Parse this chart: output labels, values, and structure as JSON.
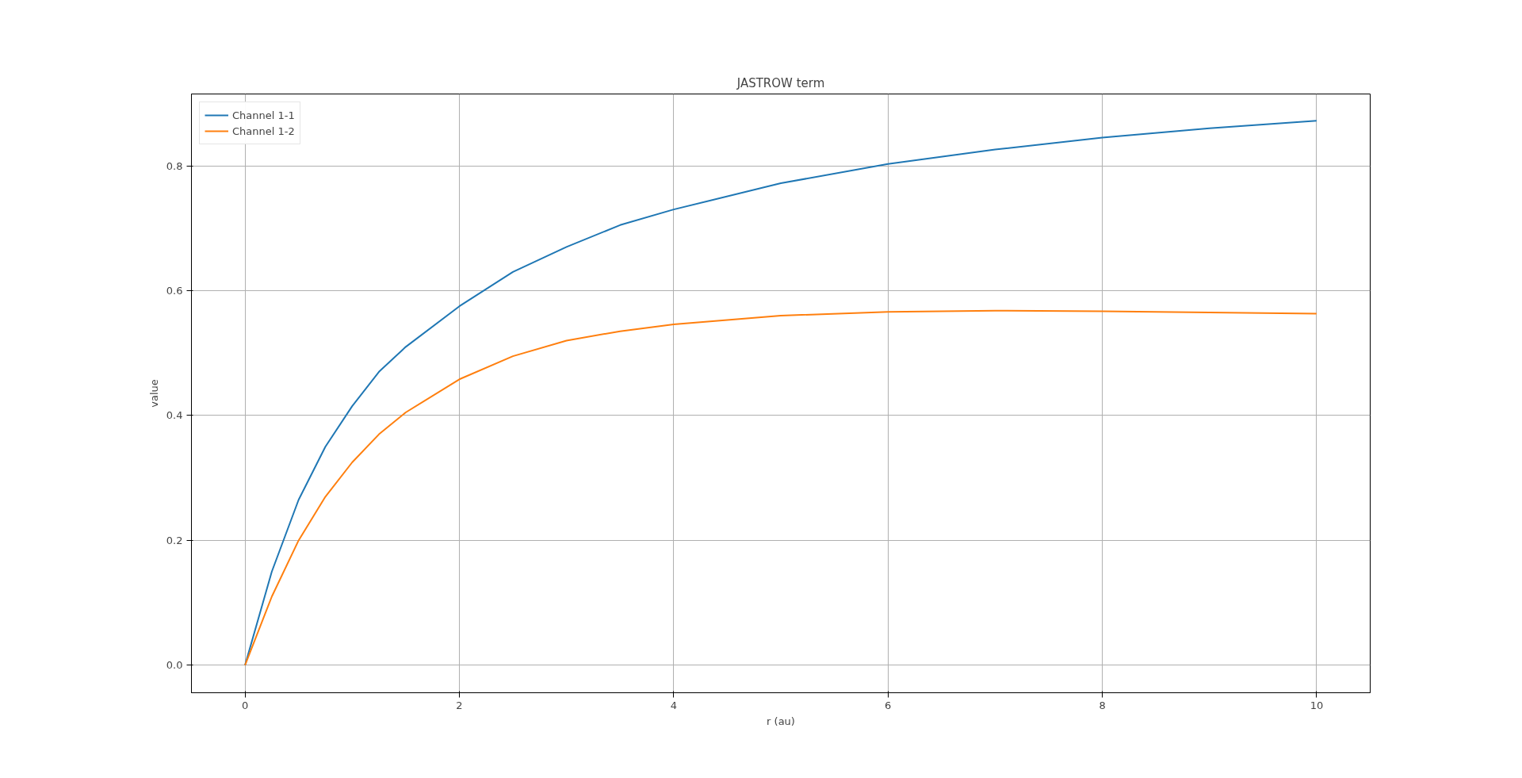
{
  "chart_data": {
    "type": "line",
    "title": "JASTROW term",
    "xlabel": "r (au)",
    "ylabel": "value",
    "x": [
      0,
      0.25,
      0.5,
      0.75,
      1,
      1.25,
      1.5,
      2,
      2.5,
      3,
      3.5,
      4,
      5,
      6,
      7,
      8,
      9,
      10
    ],
    "series": [
      {
        "name": "Channel 1-1",
        "color": "#1f77b4",
        "values": [
          0,
          0.15,
          0.265,
          0.35,
          0.415,
          0.47,
          0.51,
          0.575,
          0.63,
          0.67,
          0.705,
          0.73,
          0.772,
          0.803,
          0.826,
          0.845,
          0.86,
          0.872
        ]
      },
      {
        "name": "Channel 1-2",
        "color": "#ff7f0e",
        "values": [
          0,
          0.11,
          0.2,
          0.27,
          0.325,
          0.37,
          0.405,
          0.458,
          0.495,
          0.52,
          0.535,
          0.546,
          0.56,
          0.566,
          0.568,
          0.567,
          0.565,
          0.563
        ]
      }
    ],
    "xlim": [
      -0.5,
      10.5
    ],
    "xticks": [
      0,
      2,
      4,
      6,
      8,
      10
    ],
    "ylim": [
      -0.044,
      0.915
    ],
    "yticks": [
      {
        "value": 0,
        "label": "0.0"
      },
      {
        "value": 0.2,
        "label": "0.2"
      },
      {
        "value": 0.4,
        "label": "0.4"
      },
      {
        "value": 0.6,
        "label": "0.6"
      },
      {
        "value": 0.8,
        "label": "0.8"
      }
    ],
    "grid": true,
    "legend": "top left",
    "marker": "none",
    "line_style": "solid"
  }
}
